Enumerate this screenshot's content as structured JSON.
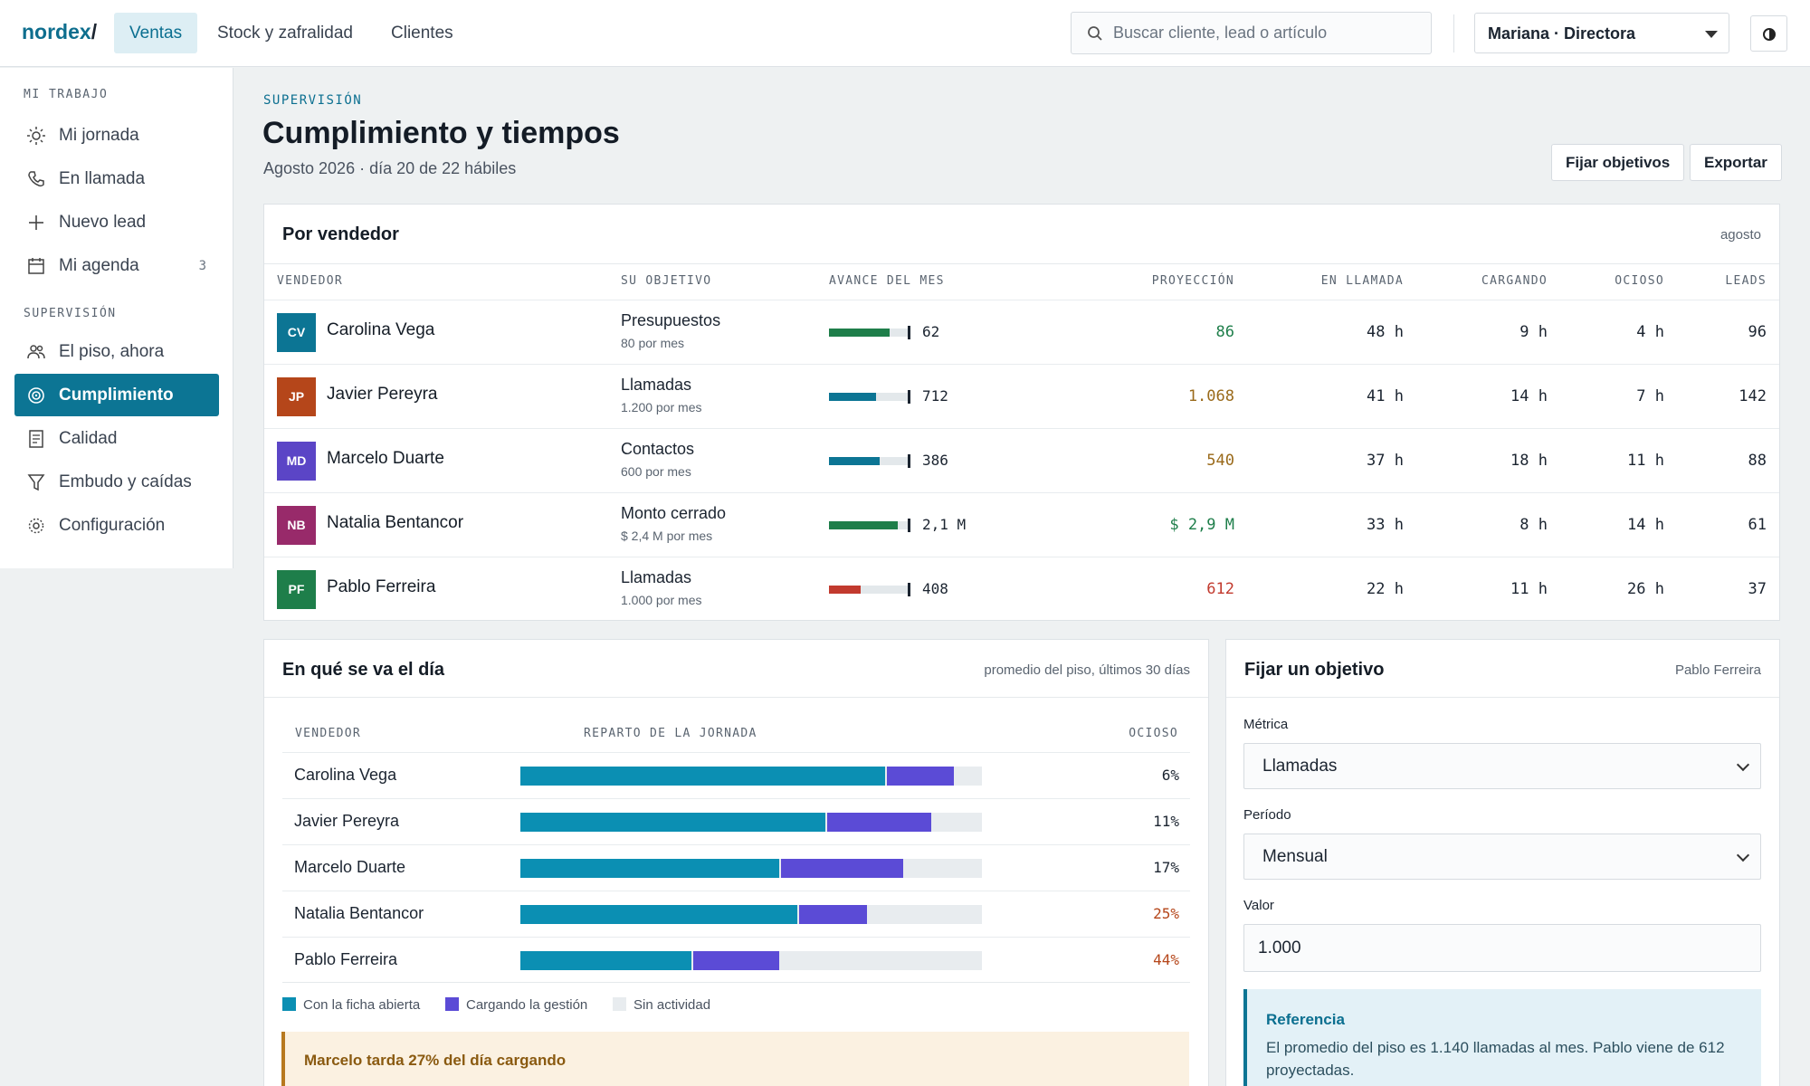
{
  "topbar": {
    "logo": "nordex",
    "logo_slash": "/",
    "tabs": [
      "Ventas",
      "Stock y zafralidad",
      "Clientes"
    ],
    "active_tab": "Ventas",
    "search_placeholder": "Buscar cliente, lead o artículo",
    "user": "Mariana · Directora"
  },
  "sidebar": {
    "section1": "MI TRABAJO",
    "items1": [
      {
        "label": "Mi jornada",
        "icon": "sun-icon"
      },
      {
        "label": "En llamada",
        "icon": "phone-icon"
      },
      {
        "label": "Nuevo lead",
        "icon": "plus-icon"
      },
      {
        "label": "Mi agenda",
        "icon": "calendar-icon",
        "count": "3"
      }
    ],
    "section2": "SUPERVISIÓN",
    "items2": [
      {
        "label": "El piso, ahora",
        "icon": "users-icon"
      },
      {
        "label": "Cumplimiento",
        "icon": "target-icon",
        "active": true
      },
      {
        "label": "Calidad",
        "icon": "document-icon"
      },
      {
        "label": "Embudo y caídas",
        "icon": "funnel-icon"
      },
      {
        "label": "Configuración",
        "icon": "gear-icon"
      }
    ]
  },
  "page": {
    "kicker": "SUPERVISIÓN",
    "title": "Cumplimiento y tiempos",
    "subtitle": "Agosto 2026 · día 20 de 22 hábiles",
    "btn_set_goals": "Fijar objetivos",
    "btn_export": "Exportar"
  },
  "vendors_card": {
    "title": "Por vendedor",
    "note": "agosto",
    "headers": [
      "VENDEDOR",
      "SU OBJETIVO",
      "AVANCE DEL MES",
      "PROYECCIÓN",
      "EN LLAMADA",
      "CARGANDO",
      "OCIOSO",
      "LEADS"
    ],
    "rows": [
      {
        "initials": "CV",
        "name": "Carolina Vega",
        "avatar_color": "#0c7594",
        "objective": "Presupuestos",
        "target": "80 por mes",
        "progress": 0.775,
        "bar_color": "#1e7e4a",
        "progress_label": "62",
        "projection": "86",
        "projection_color": "#1e7e4a",
        "call": "48 h",
        "loading": "9 h",
        "idle": "4 h",
        "leads": "96"
      },
      {
        "initials": "JP",
        "name": "Javier Pereyra",
        "avatar_color": "#b5461a",
        "objective": "Llamadas",
        "target": "1.200 por mes",
        "progress": 0.593,
        "bar_color": "#0c7594",
        "progress_label": "712",
        "projection": "1.068",
        "projection_color": "#9a6a1a",
        "call": "41 h",
        "loading": "14 h",
        "idle": "7 h",
        "leads": "142"
      },
      {
        "initials": "MD",
        "name": "Marcelo Duarte",
        "avatar_color": "#5b45c6",
        "objective": "Contactos",
        "target": "600 por mes",
        "progress": 0.643,
        "bar_color": "#0c7594",
        "progress_label": "386",
        "projection": "540",
        "projection_color": "#9a6a1a",
        "call": "37 h",
        "loading": "18 h",
        "idle": "11 h",
        "leads": "88"
      },
      {
        "initials": "NB",
        "name": "Natalia Bentancor",
        "avatar_color": "#982a6a",
        "objective": "Monto cerrado",
        "target": "$ 2,4 M por mes",
        "progress": 0.875,
        "bar_color": "#1e7e4a",
        "progress_label": "2,1 M",
        "projection": "$ 2,9 M",
        "projection_color": "#1e7e4a",
        "call": "33 h",
        "loading": "8 h",
        "idle": "14 h",
        "leads": "61"
      },
      {
        "initials": "PF",
        "name": "Pablo Ferreira",
        "avatar_color": "#1e7e4a",
        "objective": "Llamadas",
        "target": "1.000 por mes",
        "progress": 0.408,
        "bar_color": "#c23a2e",
        "progress_label": "408",
        "projection": "612",
        "projection_color": "#c23a2e",
        "call": "22 h",
        "loading": "11 h",
        "idle": "26 h",
        "leads": "37"
      }
    ]
  },
  "day_card": {
    "title": "En qué se va el día",
    "note": "promedio del piso, últimos 30 días",
    "headers": [
      "VENDEDOR",
      "REPARTO DE LA JORNADA",
      "OCIOSO"
    ],
    "colors": {
      "open": "#0b8fb3",
      "loading": "#5b4bd6",
      "idle": "#e8ecef",
      "warn": "#b5461a"
    },
    "rows": [
      {
        "name": "Carolina Vega",
        "open": 0.79,
        "loading": 0.15,
        "idle": 0.06,
        "pct": "6%",
        "warn": false
      },
      {
        "name": "Javier Pereyra",
        "open": 0.66,
        "loading": 0.23,
        "idle": 0.11,
        "pct": "11%",
        "warn": false
      },
      {
        "name": "Marcelo Duarte",
        "open": 0.56,
        "loading": 0.27,
        "idle": 0.17,
        "pct": "17%",
        "warn": false
      },
      {
        "name": "Natalia Bentancor",
        "open": 0.6,
        "loading": 0.15,
        "idle": 0.25,
        "pct": "25%",
        "warn": true
      },
      {
        "name": "Pablo Ferreira",
        "open": 0.37,
        "loading": 0.19,
        "idle": 0.44,
        "pct": "44%",
        "warn": true
      }
    ],
    "legend": [
      "Con la ficha abierta",
      "Cargando la gestión",
      "Sin actividad"
    ],
    "alert": "Marcelo tarda 27% del día cargando"
  },
  "goal_card": {
    "title": "Fijar un objetivo",
    "note": "Pablo Ferreira",
    "metric_label": "Métrica",
    "metric_value": "Llamadas",
    "period_label": "Período",
    "period_value": "Mensual",
    "value_label": "Valor",
    "value": "1.000",
    "ref_title": "Referencia",
    "ref_text": "El promedio del piso es 1.140 llamadas al mes. Pablo viene de 612 proyectadas."
  }
}
